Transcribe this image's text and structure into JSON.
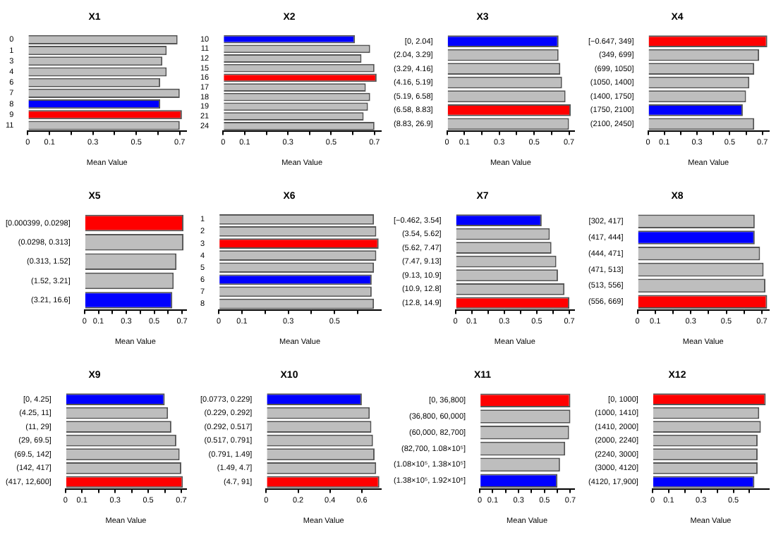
{
  "chart_data": [
    {
      "type": "bar",
      "orientation": "horizontal",
      "title": "X1",
      "xlabel": "Mean Value",
      "categories": [
        "0",
        "1",
        "3",
        "4",
        "6",
        "7",
        "8",
        "9",
        "11"
      ],
      "values": [
        0.69,
        0.64,
        0.62,
        0.64,
        0.61,
        0.7,
        0.61,
        0.71,
        0.7
      ],
      "colors": [
        "#bebebe",
        "#bebebe",
        "#bebebe",
        "#bebebe",
        "#bebebe",
        "#bebebe",
        "#0000ff",
        "#ff0000",
        "#bebebe"
      ],
      "xlim": [
        0,
        0.73
      ],
      "xticks": [
        0,
        0.1,
        {
          "value": 0.2,
          "label": null
        },
        0.3,
        {
          "value": 0.4,
          "label": null
        },
        0.5,
        {
          "value": 0.6,
          "label": null
        },
        0.7
      ]
    },
    {
      "type": "bar",
      "orientation": "horizontal",
      "title": "X2",
      "xlabel": "Mean Value",
      "categories": [
        "10",
        "11",
        "12",
        "15",
        "16",
        "17",
        "18",
        "19",
        "21",
        "24"
      ],
      "values": [
        0.61,
        0.68,
        0.64,
        0.7,
        0.71,
        0.66,
        0.68,
        0.67,
        0.65,
        0.7
      ],
      "colors": [
        "#0000ff",
        "#bebebe",
        "#bebebe",
        "#bebebe",
        "#ff0000",
        "#bebebe",
        "#bebebe",
        "#bebebe",
        "#bebebe",
        "#bebebe"
      ],
      "xlim": [
        0,
        0.73
      ],
      "xticks": [
        0,
        0.1,
        {
          "value": 0.2,
          "label": null
        },
        0.3,
        {
          "value": 0.4,
          "label": null
        },
        0.5,
        {
          "value": 0.6,
          "label": null
        },
        0.7
      ]
    },
    {
      "type": "bar",
      "orientation": "horizontal",
      "title": "X3",
      "xlabel": "Mean Value",
      "categories": [
        "[0, 2.04]",
        "(2.04, 3.29]",
        "(3.29, 4.16]",
        "(4.16, 5.19]",
        "(5.19, 6.58]",
        "(6.58, 8.83]",
        "(8.83, 26.9]"
      ],
      "values": [
        0.64,
        0.64,
        0.65,
        0.66,
        0.68,
        0.71,
        0.7
      ],
      "colors": [
        "#0000ff",
        "#bebebe",
        "#bebebe",
        "#bebebe",
        "#bebebe",
        "#ff0000",
        "#bebebe"
      ],
      "xlim": [
        0,
        0.73
      ],
      "xticks": [
        0,
        0.1,
        {
          "value": 0.2,
          "label": null
        },
        0.3,
        {
          "value": 0.4,
          "label": null
        },
        0.5,
        {
          "value": 0.6,
          "label": null
        },
        0.7
      ]
    },
    {
      "type": "bar",
      "orientation": "horizontal",
      "title": "X4",
      "xlabel": "Mean Value",
      "categories": [
        "[−0.647, 349]",
        "(349, 699]",
        "(699, 1050]",
        "(1050, 1400]",
        "(1400, 1750]",
        "(1750, 2100]",
        "(2100, 2450]"
      ],
      "values": [
        0.73,
        0.68,
        0.65,
        0.62,
        0.6,
        0.58,
        0.65
      ],
      "colors": [
        "#ff0000",
        "#bebebe",
        "#bebebe",
        "#bebebe",
        "#bebebe",
        "#0000ff",
        "#bebebe"
      ],
      "xlim": [
        0,
        0.74
      ],
      "xticks": [
        0,
        0.1,
        {
          "value": 0.2,
          "label": null
        },
        0.3,
        {
          "value": 0.4,
          "label": null
        },
        0.5,
        {
          "value": 0.6,
          "label": null
        },
        0.7
      ]
    },
    {
      "type": "bar",
      "orientation": "horizontal",
      "title": "X5",
      "xlabel": "Mean Value",
      "categories": [
        "[0.000399, 0.0298]",
        "(0.0298, 0.313]",
        "(0.313, 1.52]",
        "(1.52, 3.21]",
        "(3.21, 16.6]"
      ],
      "values": [
        0.71,
        0.71,
        0.66,
        0.64,
        0.63
      ],
      "colors": [
        "#ff0000",
        "#bebebe",
        "#bebebe",
        "#bebebe",
        "#0000ff"
      ],
      "xlim": [
        0,
        0.73
      ],
      "xticks": [
        0,
        0.1,
        {
          "value": 0.2,
          "label": null
        },
        0.3,
        {
          "value": 0.4,
          "label": null
        },
        0.5,
        {
          "value": 0.6,
          "label": null
        },
        0.7
      ]
    },
    {
      "type": "bar",
      "orientation": "horizontal",
      "title": "X6",
      "xlabel": "Mean Value",
      "categories": [
        "1",
        "2",
        "3",
        "4",
        "5",
        "6",
        "7",
        "8"
      ],
      "values": [
        0.67,
        0.68,
        0.69,
        0.68,
        0.67,
        0.66,
        0.66,
        0.67
      ],
      "colors": [
        "#bebebe",
        "#bebebe",
        "#ff0000",
        "#bebebe",
        "#bebebe",
        "#0000ff",
        "#bebebe",
        "#bebebe"
      ],
      "xlim": [
        0,
        0.7
      ],
      "xticks": [
        0,
        0.1,
        {
          "value": 0.2,
          "label": null
        },
        0.3,
        {
          "value": 0.4,
          "label": null
        },
        0.5,
        {
          "value": 0.6,
          "label": null
        }
      ]
    },
    {
      "type": "bar",
      "orientation": "horizontal",
      "title": "X7",
      "xlabel": "Mean Value",
      "categories": [
        "[−0.462, 3.54]",
        "(3.54, 5.62]",
        "(5.62, 7.47]",
        "(7.47, 9.13]",
        "(9.13, 10.9]",
        "(10.9, 12.8]",
        "(12.8, 14.9]"
      ],
      "values": [
        0.53,
        0.58,
        0.59,
        0.62,
        0.63,
        0.67,
        0.7
      ],
      "colors": [
        "#0000ff",
        "#bebebe",
        "#bebebe",
        "#bebebe",
        "#bebebe",
        "#bebebe",
        "#ff0000"
      ],
      "xlim": [
        0,
        0.73
      ],
      "xticks": [
        0,
        0.1,
        {
          "value": 0.2,
          "label": null
        },
        0.3,
        {
          "value": 0.4,
          "label": null
        },
        0.5,
        {
          "value": 0.6,
          "label": null
        },
        0.7
      ]
    },
    {
      "type": "bar",
      "orientation": "horizontal",
      "title": "X8",
      "xlabel": "Mean Value",
      "categories": [
        "[302, 417]",
        "(417, 444]",
        "(444, 471]",
        "(471, 513]",
        "(513, 556]",
        "(556, 669]"
      ],
      "values": [
        0.66,
        0.66,
        0.69,
        0.71,
        0.72,
        0.73
      ],
      "colors": [
        "#bebebe",
        "#0000ff",
        "#bebebe",
        "#bebebe",
        "#bebebe",
        "#ff0000"
      ],
      "xlim": [
        0,
        0.74
      ],
      "xticks": [
        0,
        0.1,
        {
          "value": 0.2,
          "label": null
        },
        0.3,
        {
          "value": 0.4,
          "label": null
        },
        0.5,
        {
          "value": 0.6,
          "label": null
        },
        0.7
      ]
    },
    {
      "type": "bar",
      "orientation": "horizontal",
      "title": "X9",
      "xlabel": "Mean Value",
      "categories": [
        "[0, 4.25]",
        "(4.25, 11]",
        "(11, 29]",
        "(29, 69.5]",
        "(69.5, 142]",
        "(142, 417]",
        "(417, 12,600]"
      ],
      "values": [
        0.6,
        0.62,
        0.64,
        0.67,
        0.69,
        0.7,
        0.71
      ],
      "colors": [
        "#0000ff",
        "#bebebe",
        "#bebebe",
        "#bebebe",
        "#bebebe",
        "#bebebe",
        "#ff0000"
      ],
      "xlim": [
        0,
        0.73
      ],
      "xticks": [
        0,
        0.1,
        {
          "value": 0.2,
          "label": null
        },
        0.3,
        {
          "value": 0.4,
          "label": null
        },
        0.5,
        {
          "value": 0.6,
          "label": null
        },
        0.7
      ]
    },
    {
      "type": "bar",
      "orientation": "horizontal",
      "title": "X10",
      "xlabel": "Mean Value",
      "categories": [
        "[0.0773, 0.229]",
        "(0.229, 0.292]",
        "(0.292, 0.517]",
        "(0.517, 0.791]",
        "(0.791, 1.49]",
        "(1.49, 4.7]",
        "(4.7, 91]"
      ],
      "values": [
        0.6,
        0.65,
        0.66,
        0.67,
        0.68,
        0.69,
        0.71
      ],
      "colors": [
        "#0000ff",
        "#bebebe",
        "#bebebe",
        "#bebebe",
        "#bebebe",
        "#bebebe",
        "#ff0000"
      ],
      "xlim": [
        0,
        0.72
      ],
      "xticks": [
        0,
        0.2,
        0.4,
        0.6
      ]
    },
    {
      "type": "bar",
      "orientation": "horizontal",
      "title": "X11",
      "xlabel": "Mean Value",
      "categories": [
        "[0, 36,800]",
        "(36,800, 60,000]",
        "(60,000, 82,700]",
        "(82,700, 1.08×10⁵]",
        "(1.08×10⁵, 1.38×10⁵]",
        "(1.38×10⁵, 1.92×10⁶]"
      ],
      "values": [
        0.7,
        0.7,
        0.69,
        0.66,
        0.62,
        0.6
      ],
      "colors": [
        "#ff0000",
        "#bebebe",
        "#bebebe",
        "#bebebe",
        "#bebebe",
        "#0000ff"
      ],
      "xlim": [
        0,
        0.73
      ],
      "xticks": [
        0,
        0.1,
        {
          "value": 0.2,
          "label": null
        },
        0.3,
        {
          "value": 0.4,
          "label": null
        },
        0.5,
        {
          "value": 0.6,
          "label": null
        },
        0.7
      ]
    },
    {
      "type": "bar",
      "orientation": "horizontal",
      "title": "X12",
      "xlabel": "Mean Value",
      "categories": [
        "[0, 1000]",
        "(1000, 1410]",
        "(1410, 2000]",
        "(2000, 2240]",
        "(2240, 3000]",
        "(3000, 4120]",
        "(4120, 17,900]"
      ],
      "values": [
        0.7,
        0.66,
        0.67,
        0.65,
        0.65,
        0.65,
        0.63
      ],
      "colors": [
        "#ff0000",
        "#bebebe",
        "#bebebe",
        "#bebebe",
        "#bebebe",
        "#bebebe",
        "#0000ff"
      ],
      "xlim": [
        0,
        0.72
      ],
      "xticks": [
        0,
        0.1,
        {
          "value": 0.2,
          "label": null
        },
        0.3,
        {
          "value": 0.4,
          "label": null
        },
        0.5,
        {
          "value": 0.6,
          "label": null
        }
      ]
    }
  ]
}
